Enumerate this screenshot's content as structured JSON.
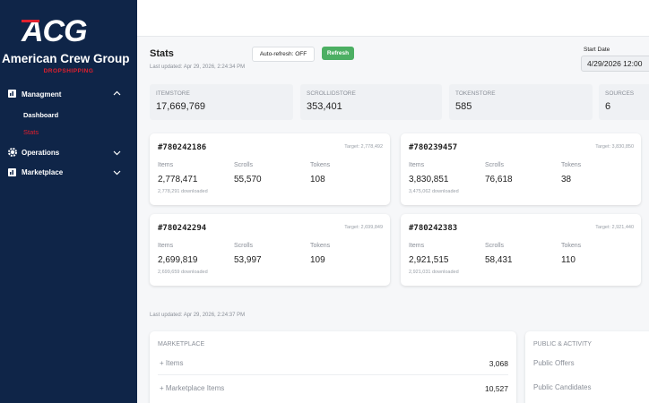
{
  "sidebar": {
    "logo": "ACG",
    "brand": "American Crew Group",
    "tagline": "DROPSHIPPING",
    "menu": [
      {
        "label": "Managment",
        "children": [
          "Dashboard",
          "Stats"
        ]
      },
      {
        "label": "Operations"
      },
      {
        "label": "Marketplace"
      }
    ]
  },
  "header": {
    "title": "Stats",
    "last_updated": "Last updated: Apr 29, 2026, 2:24:34 PM",
    "auto_refresh": "Auto-refresh: OFF",
    "refresh": "Refresh",
    "start_date_label": "Start Date",
    "start_date": "4/29/2026 12:00"
  },
  "summary": [
    {
      "label": "ITEMSTORE",
      "value": "17,669,769"
    },
    {
      "label": "SCROLLIDSTORE",
      "value": "353,401"
    },
    {
      "label": "TOKENSTORE",
      "value": "585"
    },
    {
      "label": "SOURCES",
      "value": "6"
    }
  ],
  "metric_labels": [
    "Items",
    "Scrolls",
    "Tokens"
  ],
  "jobs": [
    {
      "id": "#780242186",
      "target": "Target: 2,778,492",
      "items": "2,778,471",
      "downloaded": "2,778,291 downloaded",
      "scrolls": "55,570",
      "tokens": "108"
    },
    {
      "id": "#780239457",
      "target": "Target: 3,830,850",
      "items": "3,830,851",
      "downloaded": "3,475,062 downloaded",
      "scrolls": "76,618",
      "tokens": "38"
    },
    {
      "id": "#780242294",
      "target": "Target: 2,699,849",
      "items": "2,699,819",
      "downloaded": "2,699,659 downloaded",
      "scrolls": "53,997",
      "tokens": "109"
    },
    {
      "id": "#780242383",
      "target": "Target: 2,921,440",
      "items": "2,921,515",
      "downloaded": "2,921,031 downloaded",
      "scrolls": "58,431",
      "tokens": "110"
    }
  ],
  "footer_updated": "Last updated: Apr 29, 2026, 2:24:37 PM",
  "marketplace": {
    "title": "MARKETPLACE",
    "rows": [
      {
        "label": "+ Items",
        "value": "3,068"
      },
      {
        "label": "+ Marketplace Items",
        "value": "10,527"
      }
    ]
  },
  "public": {
    "title": "PUBLIC & ACTIVITY",
    "rows": [
      "Public Offers",
      "Public Candidates"
    ]
  }
}
